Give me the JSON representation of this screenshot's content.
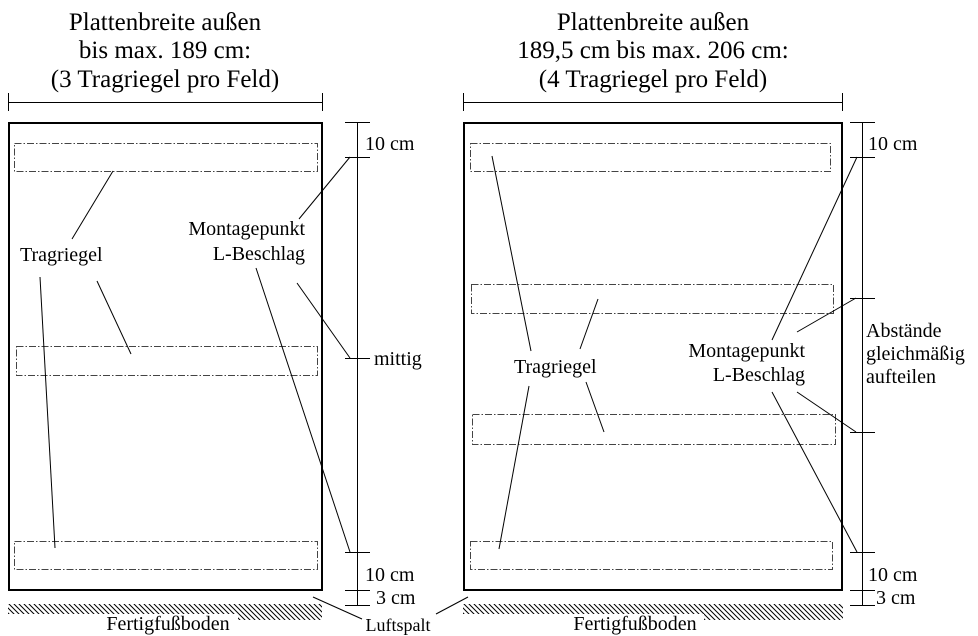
{
  "left": {
    "title": [
      "Plattenbreite außen",
      "bis max. 189 cm:",
      "(3 Tragriegel pro Feld)"
    ],
    "beam_label": "Tragriegel",
    "mount_label": [
      "Montagepunkt",
      "L-Beschlag"
    ],
    "dimensions": {
      "top": "10 cm",
      "middle": [
        "mittig"
      ],
      "bottom": "10 cm",
      "gap": "3 cm"
    },
    "floor_label": "Fertigfußboden"
  },
  "right": {
    "title": [
      "Plattenbreite außen",
      "189,5 cm bis max. 206 cm:",
      "(4 Tragriegel pro Feld)"
    ],
    "beam_label": "Tragriegel",
    "mount_label": [
      "Montagepunkt",
      "L-Beschlag"
    ],
    "dimensions": {
      "top": "10 cm",
      "middle": [
        "Abstände",
        "gleichmäßig",
        "aufteilen"
      ],
      "bottom": "10 cm",
      "gap": "3 cm"
    },
    "floor_label": "Fertigfußboden"
  },
  "gap_label": "Luftspalt",
  "colors": {
    "ink": "#000000",
    "beam_outline": "#444444",
    "background": "#ffffff"
  }
}
